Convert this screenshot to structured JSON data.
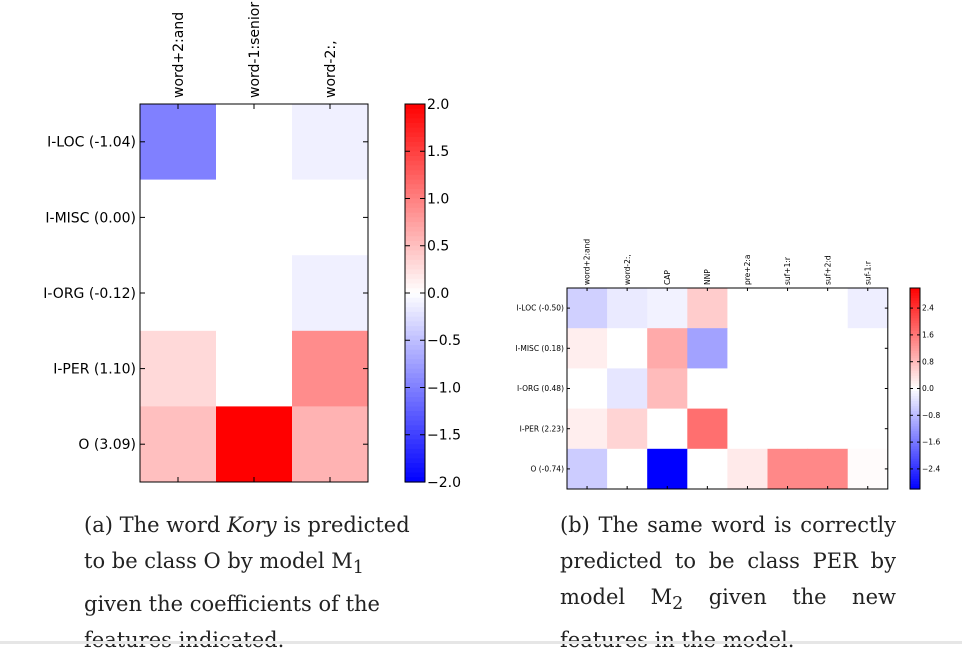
{
  "chart_data": [
    {
      "type": "heatmap",
      "columns": [
        "word+2:and",
        "word-1:senior",
        "word-2:,"
      ],
      "rows": [
        "I-LOC (-1.04)",
        "I-MISC (0.00)",
        "I-ORG (-0.12)",
        "I-PER (1.10)",
        "O (3.09)"
      ],
      "values": [
        [
          -1.0,
          0.0,
          -0.12
        ],
        [
          0.0,
          0.0,
          0.0
        ],
        [
          0.0,
          0.0,
          -0.12
        ],
        [
          0.3,
          0.0,
          0.9
        ],
        [
          0.5,
          2.0,
          0.6
        ]
      ],
      "colorbar": {
        "min": -2.0,
        "max": 2.0,
        "ticks": [
          "2.0",
          "1.5",
          "1.0",
          "0.5",
          "0.0",
          "−0.5",
          "−1.0",
          "−1.5",
          "−2.0"
        ]
      },
      "colormap": {
        "low": "#0000ff",
        "mid": "#ffffff",
        "high": "#ff0000"
      }
    },
    {
      "type": "heatmap",
      "columns": [
        "word+2:and",
        "word-2:,",
        "CAP",
        "NNP",
        "pre+2:a",
        "suf+1:r",
        "suf+2:d",
        "suf-1:r"
      ],
      "rows": [
        "I-LOC (-0.50)",
        "I-MISC (0.18)",
        "I-ORG (0.48)",
        "I-PER (2.23)",
        "O (-0.74)"
      ],
      "values": [
        [
          -0.55,
          -0.25,
          -0.15,
          0.6,
          0.0,
          0.0,
          0.0,
          -0.2
        ],
        [
          0.2,
          0.0,
          1.0,
          -1.1,
          0.0,
          0.0,
          0.0,
          0.0
        ],
        [
          0.0,
          -0.3,
          0.8,
          0.0,
          0.0,
          0.0,
          0.0,
          0.0
        ],
        [
          0.2,
          0.5,
          0.0,
          1.7,
          0.0,
          0.0,
          0.0,
          0.0
        ],
        [
          -0.6,
          0.0,
          -3.0,
          0.0,
          0.25,
          1.4,
          1.4,
          0.05
        ]
      ],
      "colorbar": {
        "min": -3.0,
        "max": 3.0,
        "ticks": [
          "2.4",
          "1.6",
          "0.8",
          "0.0",
          "−0.8",
          "−1.6",
          "−2.4"
        ]
      },
      "colormap": {
        "low": "#0000ff",
        "mid": "#ffffff",
        "high": "#ff0000"
      }
    }
  ],
  "captions": {
    "a": {
      "pre": "(a) The word ",
      "em": "Kory",
      "post": " is predicted to be class O by model M",
      "sub": "1",
      "end": " given the coefficients of the features indicated."
    },
    "b": {
      "pre": "(b) The same word is correctly predicted to be class PER by model M",
      "sub": "2",
      "end": " given the new features in the model."
    }
  }
}
